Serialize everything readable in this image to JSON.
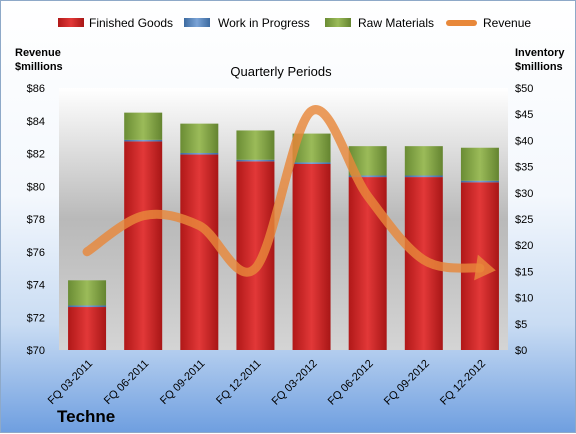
{
  "chart_data": {
    "type": "bar",
    "title": "Quarterly Periods",
    "company": "Techne",
    "left_axis_title": [
      "Revenue",
      "$millions"
    ],
    "right_axis_title": [
      "Inventory",
      "$millions"
    ],
    "categories": [
      "FQ 03-2011",
      "FQ 06-2011",
      "FQ 09-2011",
      "FQ 12-2011",
      "FQ 03-2012",
      "FQ 06-2012",
      "FQ 09-2012",
      "FQ 12-2012"
    ],
    "left_axis": {
      "min": 70,
      "max": 86,
      "step": 2,
      "ticks": [
        "$70",
        "$72",
        "$74",
        "$76",
        "$78",
        "$80",
        "$82",
        "$84",
        "$86"
      ]
    },
    "right_axis": {
      "min": 0,
      "max": 50,
      "step": 5,
      "ticks": [
        "$0",
        "$5",
        "$10",
        "$15",
        "$20",
        "$25",
        "$30",
        "$35",
        "$40",
        "$45",
        "$50"
      ]
    },
    "series": [
      {
        "name": "Finished Goods",
        "axis": "right",
        "kind": "stacked-bar",
        "color": "#cc2222",
        "values": [
          8.2,
          39.8,
          37.3,
          36.0,
          35.5,
          33.0,
          33.0,
          32.0
        ]
      },
      {
        "name": "Work in Progress",
        "axis": "right",
        "kind": "stacked-bar",
        "color": "#4f81bd",
        "values": [
          0.3,
          0.3,
          0.3,
          0.3,
          0.3,
          0.3,
          0.3,
          0.3
        ]
      },
      {
        "name": "Raw Materials",
        "axis": "right",
        "kind": "stacked-bar",
        "color": "#7fa040",
        "values": [
          4.8,
          5.2,
          5.6,
          5.6,
          5.5,
          5.6,
          5.6,
          6.3
        ]
      },
      {
        "name": "Revenue",
        "axis": "left",
        "kind": "line",
        "color": "#e8883a",
        "values": [
          76.0,
          78.2,
          77.6,
          75.0,
          84.6,
          79.4,
          75.5,
          75.0
        ]
      }
    ],
    "legend_position": "top",
    "grid": false
  }
}
